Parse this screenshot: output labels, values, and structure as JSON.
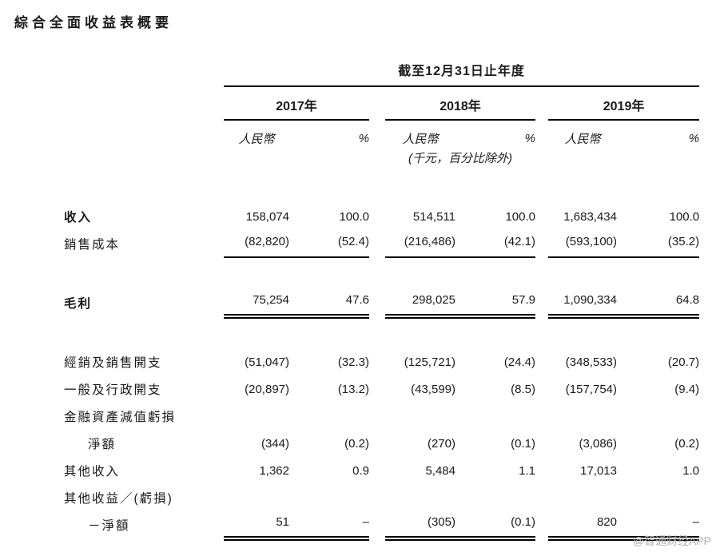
{
  "page": {
    "title": "綜合全面收益表概要",
    "watermark": "@智通财经APP"
  },
  "table": {
    "period_header": "截至12月31日止年度",
    "years": [
      "2017年",
      "2018年",
      "2019年"
    ],
    "col_headers": {
      "currency": "人民幣",
      "percent": "%"
    },
    "unit_note": "(千元，百分比除外)",
    "rows": [
      {
        "label": "收入",
        "bold": true,
        "indent": false,
        "gap_before": false,
        "rule": "none",
        "values": [
          "158,074",
          "100.0",
          "514,511",
          "100.0",
          "1,683,434",
          "100.0"
        ]
      },
      {
        "label": "銷售成本",
        "bold": false,
        "indent": false,
        "gap_before": false,
        "rule": "single",
        "values": [
          "(82,820)",
          "(52.4)",
          "(216,486)",
          "(42.1)",
          "(593,100)",
          "(35.2)"
        ]
      },
      {
        "label": "毛利",
        "bold": true,
        "indent": false,
        "gap_before": true,
        "rule": "double",
        "values": [
          "75,254",
          "47.6",
          "298,025",
          "57.9",
          "1,090,334",
          "64.8"
        ]
      },
      {
        "label": "經銷及銷售開支",
        "bold": false,
        "indent": false,
        "gap_before": true,
        "rule": "none",
        "values": [
          "(51,047)",
          "(32.3)",
          "(125,721)",
          "(24.4)",
          "(348,533)",
          "(20.7)"
        ]
      },
      {
        "label": "一般及行政開支",
        "bold": false,
        "indent": false,
        "gap_before": false,
        "rule": "none",
        "values": [
          "(20,897)",
          "(13.2)",
          "(43,599)",
          "(8.5)",
          "(157,754)",
          "(9.4)"
        ]
      },
      {
        "label": "金融資產減值虧損",
        "bold": false,
        "indent": false,
        "gap_before": false,
        "rule": "none",
        "values": []
      },
      {
        "label": "淨額",
        "bold": false,
        "indent": true,
        "gap_before": false,
        "rule": "none",
        "values": [
          "(344)",
          "(0.2)",
          "(270)",
          "(0.1)",
          "(3,086)",
          "(0.2)"
        ]
      },
      {
        "label": "其他收入",
        "bold": false,
        "indent": false,
        "gap_before": false,
        "rule": "none",
        "values": [
          "1,362",
          "0.9",
          "5,484",
          "1.1",
          "17,013",
          "1.0"
        ]
      },
      {
        "label": "其他收益／(虧損)",
        "bold": false,
        "indent": false,
        "gap_before": false,
        "rule": "none",
        "values": []
      },
      {
        "label": "－淨額",
        "bold": false,
        "indent": true,
        "gap_before": false,
        "rule": "double",
        "values": [
          "51",
          "–",
          "(305)",
          "(0.1)",
          "820",
          "–"
        ]
      }
    ]
  }
}
